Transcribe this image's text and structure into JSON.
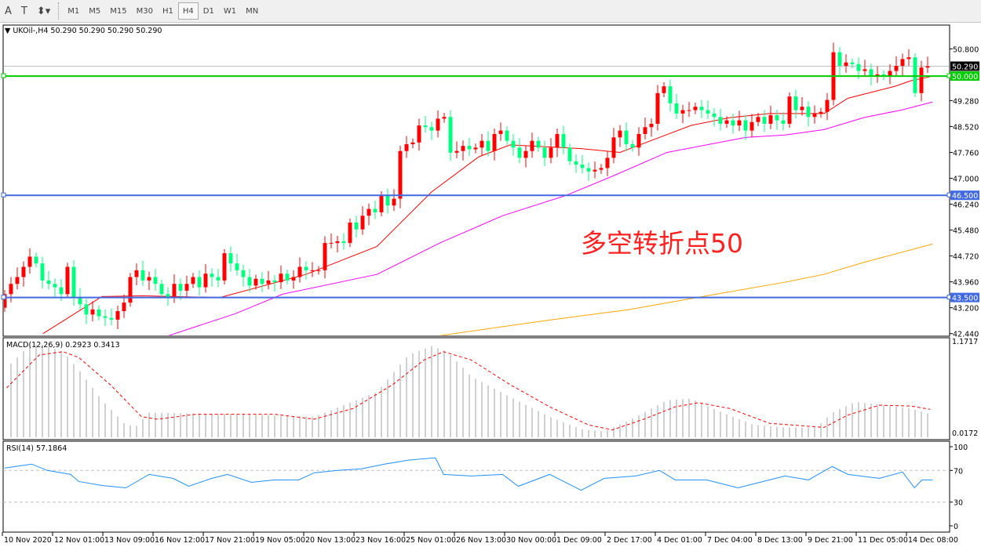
{
  "toolbar": {
    "tools": [
      {
        "icon": "text-icon",
        "label": "A"
      },
      {
        "icon": "text-label-icon",
        "label": "T"
      },
      {
        "icon": "arrows-icon",
        "label": "⬍▾"
      }
    ],
    "timeframes": [
      "M1",
      "M5",
      "M15",
      "M30",
      "H1",
      "H4",
      "D1",
      "W1",
      "MN"
    ],
    "selected": "H4"
  },
  "header": {
    "title": "UKOil-,H4  50.290 50.290 50.290 50.290"
  },
  "annotation": {
    "text": "多空转折点50",
    "color": "#ff2020"
  },
  "colors": {
    "up": "#ff0000",
    "down": "#00ff7f",
    "ma_fast": "#ff0000",
    "ma_mid": "#ff00ff",
    "ma_slow": "#ffa500",
    "line_50": "#00cc00",
    "line_hlines": "#4169e1",
    "macd_hist": "#c0c0c0",
    "macd_signal": "#ff0000",
    "rsi": "#1e90ff"
  },
  "chart_data": [
    {
      "type": "candlestick",
      "symbol": "UKOil-",
      "timeframe": "H4",
      "first_open": 43.2,
      "close": [
        43.6,
        43.9,
        44.1,
        44.4,
        44.7,
        44.5,
        44.0,
        43.9,
        43.8,
        43.6,
        44.4,
        43.5,
        43.3,
        43.0,
        43.15,
        42.95,
        42.9,
        42.85,
        43.1,
        43.35,
        44.1,
        44.3,
        44.0,
        44.1,
        43.9,
        43.6,
        43.5,
        43.9,
        43.7,
        43.9,
        44.1,
        43.8,
        44.2,
        44.1,
        44.0,
        44.8,
        44.5,
        44.3,
        44.1,
        43.85,
        44.05,
        43.9,
        44.0,
        43.95,
        44.2,
        44.0,
        44.1,
        44.4,
        44.3,
        44.3,
        44.3,
        45.1,
        45.1,
        45.15,
        45.1,
        45.7,
        45.5,
        45.9,
        46.1,
        46.0,
        46.5,
        46.2,
        46.4,
        47.8,
        48.0,
        48.05,
        48.55,
        48.5,
        48.4,
        48.75,
        48.8,
        47.75,
        47.8,
        47.95,
        47.85,
        47.9,
        48.1,
        47.8,
        48.3,
        48.4,
        48.1,
        47.9,
        47.6,
        47.8,
        48.1,
        47.9,
        47.6,
        47.9,
        48.3,
        47.9,
        47.5,
        47.4,
        47.3,
        47.2,
        47.25,
        47.3,
        47.6,
        48.2,
        48.4,
        48.0,
        47.9,
        48.3,
        48.5,
        48.6,
        49.5,
        49.7,
        49.2,
        48.9,
        49.0,
        49.0,
        49.1,
        49.0,
        48.9,
        48.8,
        48.6,
        48.7,
        48.55,
        48.7,
        48.4,
        48.65,
        48.8,
        48.6,
        48.85,
        48.7,
        48.6,
        49.4,
        49.0,
        49.1,
        48.8,
        48.9,
        48.95,
        49.3,
        50.7,
        50.3,
        50.4,
        50.35,
        50.15,
        50.2,
        50.0,
        50.05,
        50.0,
        50.15,
        50.3,
        50.5,
        50.55,
        49.5,
        50.25,
        50.29
      ],
      "y_ticks": [
        "50.800",
        "50.290",
        "50.000",
        "49.280",
        "48.520",
        "47.760",
        "47.000",
        "46.500",
        "46.240",
        "45.480",
        "44.720",
        "43.960",
        "43.500",
        "43.200",
        "42.440"
      ],
      "ylim": [
        42.44,
        51.5
      ],
      "bid": 50.29,
      "horizontal_lines": [
        {
          "value": 50.0,
          "label": "50.000",
          "color": "#00cc00"
        },
        {
          "value": 46.5,
          "label": "46.500",
          "color": "#4169e1"
        },
        {
          "value": 43.5,
          "label": "43.500",
          "color": "#4169e1"
        }
      ],
      "moving_averages": [
        {
          "color": "#ff0000",
          "points": [
            [
              6.1,
              42.44
            ],
            [
              15.5,
              43.53
            ],
            [
              22,
              43.55
            ],
            [
              34.3,
              43.5
            ],
            [
              48,
              44.18
            ],
            [
              59.3,
              45.0
            ],
            [
              68,
              46.6
            ],
            [
              75.5,
              47.63
            ],
            [
              80.5,
              47.98
            ],
            [
              91.8,
              47.87
            ],
            [
              98,
              47.76
            ],
            [
              104.3,
              48.2
            ],
            [
              109.3,
              48.55
            ],
            [
              115.5,
              48.78
            ],
            [
              121.8,
              48.9
            ],
            [
              130.5,
              48.9
            ],
            [
              134.3,
              49.35
            ],
            [
              141.8,
              49.7
            ],
            [
              144.3,
              49.86
            ],
            [
              147.4,
              49.98
            ]
          ]
        },
        {
          "color": "#ff00ff",
          "points": [
            [
              26.1,
              42.38
            ],
            [
              36.8,
              43.03
            ],
            [
              44.3,
              43.6
            ],
            [
              59.3,
              44.18
            ],
            [
              69.3,
              45.1
            ],
            [
              79.3,
              45.9
            ],
            [
              89.3,
              46.49
            ],
            [
              96.8,
              47.06
            ],
            [
              105.5,
              47.76
            ],
            [
              111.8,
              47.98
            ],
            [
              118,
              48.2
            ],
            [
              124.3,
              48.27
            ],
            [
              130.5,
              48.43
            ],
            [
              136.8,
              48.78
            ],
            [
              143,
              49.01
            ],
            [
              147.8,
              49.24
            ]
          ]
        },
        {
          "color": "#ffa500",
          "points": [
            [
              69.3,
              42.38
            ],
            [
              86.8,
              42.84
            ],
            [
              99.3,
              43.14
            ],
            [
              111.8,
              43.55
            ],
            [
              124.3,
              43.95
            ],
            [
              130.5,
              44.18
            ],
            [
              136.8,
              44.53
            ],
            [
              147.8,
              45.07
            ]
          ]
        }
      ],
      "x_ticks": [
        "10 Nov 2020",
        "12 Nov 01:00",
        "13 Nov 09:00",
        "16 Nov 12:00",
        "17 Nov 21:00",
        "19 Nov 05:00",
        "20 Nov 13:00",
        "23 Nov 16:00",
        "25 Nov 01:00",
        "26 Nov 13:00",
        "30 Nov 00:00",
        "1 Dec 09:00",
        "2 Dec 17:00",
        "4 Dec 01:00",
        "7 Dec 04:00",
        "8 Dec 13:00",
        "9 Dec 21:00",
        "11 Dec 05:00",
        "14 Dec 08:00"
      ]
    },
    {
      "type": "bar",
      "title": "MACD(12,26,9) 0.2923 0.3413",
      "y_ticks": [
        "1.1717",
        "0.0172"
      ],
      "histogram_points": [
        [
          0.5,
          0.86
        ],
        [
          3.6,
          1.09
        ],
        [
          5.5,
          1.14
        ],
        [
          9.3,
          1.04
        ],
        [
          11.8,
          0.82
        ],
        [
          15.5,
          0.45
        ],
        [
          19.3,
          0.15
        ],
        [
          21,
          0.14
        ],
        [
          23,
          0.3
        ],
        [
          36.8,
          0.28
        ],
        [
          49.3,
          0.25
        ],
        [
          54.3,
          0.4
        ],
        [
          59.3,
          0.55
        ],
        [
          64.3,
          1.0
        ],
        [
          68,
          1.11
        ],
        [
          70.5,
          1.04
        ],
        [
          74.3,
          0.74
        ],
        [
          80.5,
          0.49
        ],
        [
          86.8,
          0.25
        ],
        [
          91.8,
          0.1
        ],
        [
          95.5,
          0.07
        ],
        [
          99.3,
          0.2
        ],
        [
          105.5,
          0.45
        ],
        [
          109.3,
          0.47
        ],
        [
          114.3,
          0.3
        ],
        [
          119.3,
          0.15
        ],
        [
          124.3,
          0.12
        ],
        [
          129.3,
          0.12
        ],
        [
          131.8,
          0.3
        ],
        [
          135.5,
          0.43
        ],
        [
          144.3,
          0.35
        ],
        [
          147.4,
          0.28
        ]
      ],
      "signal_points": [
        [
          0.3,
          0.6
        ],
        [
          5.5,
          1.0
        ],
        [
          9.3,
          1.04
        ],
        [
          11.8,
          0.97
        ],
        [
          16.8,
          0.64
        ],
        [
          21.8,
          0.25
        ],
        [
          24.3,
          0.22
        ],
        [
          30.5,
          0.28
        ],
        [
          43,
          0.28
        ],
        [
          49.3,
          0.22
        ],
        [
          55.5,
          0.35
        ],
        [
          61.8,
          0.64
        ],
        [
          66.8,
          0.94
        ],
        [
          69.9,
          1.04
        ],
        [
          74.3,
          0.94
        ],
        [
          80.5,
          0.64
        ],
        [
          86.8,
          0.37
        ],
        [
          93,
          0.15
        ],
        [
          96.8,
          0.09
        ],
        [
          101.8,
          0.22
        ],
        [
          106.8,
          0.37
        ],
        [
          110.5,
          0.42
        ],
        [
          115.5,
          0.35
        ],
        [
          121.8,
          0.17
        ],
        [
          130.5,
          0.12
        ],
        [
          134.3,
          0.27
        ],
        [
          139.3,
          0.39
        ],
        [
          144.3,
          0.38
        ],
        [
          147.4,
          0.34
        ]
      ]
    },
    {
      "type": "line",
      "title": "RSI(14) 57.1864",
      "y_ticks": [
        "100",
        "70",
        "30",
        "0"
      ],
      "levels": [
        70,
        30
      ],
      "ylim": [
        0,
        100
      ],
      "points": [
        [
          0,
          73
        ],
        [
          4.3,
          78
        ],
        [
          6.8,
          70
        ],
        [
          10.5,
          65
        ],
        [
          11.8,
          56
        ],
        [
          15.5,
          51
        ],
        [
          19.3,
          48
        ],
        [
          23,
          65
        ],
        [
          26.8,
          60
        ],
        [
          29.3,
          50
        ],
        [
          33,
          60
        ],
        [
          35.5,
          65
        ],
        [
          39.3,
          55
        ],
        [
          43,
          58
        ],
        [
          46.8,
          58
        ],
        [
          49.3,
          67
        ],
        [
          53,
          70
        ],
        [
          56.8,
          72
        ],
        [
          60.5,
          78
        ],
        [
          64.3,
          83
        ],
        [
          68.6,
          86
        ],
        [
          69.9,
          65
        ],
        [
          74.3,
          63
        ],
        [
          79.3,
          65
        ],
        [
          81.8,
          50
        ],
        [
          86.8,
          65
        ],
        [
          91.8,
          45
        ],
        [
          95.5,
          60
        ],
        [
          100.5,
          63
        ],
        [
          104.3,
          70
        ],
        [
          106.8,
          58
        ],
        [
          111.8,
          58
        ],
        [
          116.8,
          48
        ],
        [
          121.8,
          58
        ],
        [
          124.3,
          63
        ],
        [
          128,
          58
        ],
        [
          131.8,
          75
        ],
        [
          134.3,
          65
        ],
        [
          139.3,
          60
        ],
        [
          143,
          68
        ],
        [
          144.9,
          48
        ],
        [
          146.1,
          58
        ],
        [
          147.8,
          58
        ]
      ]
    }
  ]
}
